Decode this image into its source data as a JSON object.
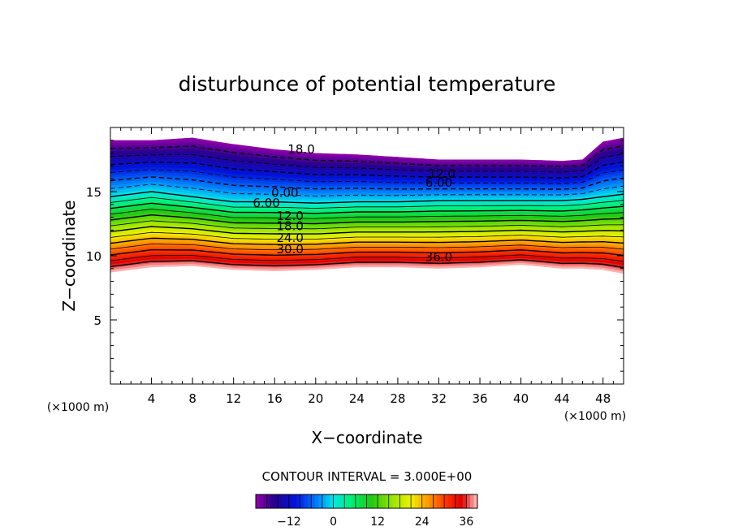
{
  "chart_data": {
    "type": "heatmap",
    "title": "disturbunce of potential temperature",
    "xlabel": "X−coordinate",
    "ylabel": "Z−coordinate",
    "x_unit": "(×1000 m)",
    "y_unit": "(×1000 m)",
    "xlim": [
      0,
      50
    ],
    "ylim": [
      0,
      20
    ],
    "x_ticks": [
      4,
      8,
      12,
      16,
      20,
      24,
      28,
      32,
      36,
      40,
      44,
      48
    ],
    "y_ticks": [
      5,
      10,
      15
    ],
    "contour_interval_text": "CONTOUR INTERVAL = 3.000E+00",
    "colorbar": {
      "ticks": [
        -12,
        0,
        12,
        24,
        36
      ],
      "tick_labels": [
        "−12",
        "0",
        "12",
        "24",
        "36"
      ],
      "range": [
        -21,
        39
      ]
    },
    "field": {
      "x": [
        0,
        4,
        8,
        12,
        16,
        20,
        24,
        28,
        32,
        36,
        40,
        44,
        46,
        48,
        50
      ],
      "top": [
        19.0,
        19.0,
        19.2,
        18.7,
        18.3,
        18.0,
        17.9,
        17.7,
        17.5,
        17.5,
        17.5,
        17.4,
        17.5,
        18.9,
        19.2
      ],
      "bottom": [
        8.7,
        9.1,
        9.2,
        8.9,
        8.8,
        8.9,
        9.1,
        9.1,
        9.0,
        9.1,
        9.3,
        9.0,
        9.0,
        8.9,
        8.6
      ],
      "interface_z": [
        14.6,
        15.0,
        14.6,
        14.2,
        14.2,
        14.1,
        14.2,
        14.2,
        14.3,
        14.3,
        14.3,
        14.3,
        14.4,
        14.6,
        14.8
      ],
      "value_at_top": -21,
      "value_at_interface": 0,
      "value_at_bottom": 39
    },
    "contour_labels": [
      {
        "text": "18.0",
        "x": 18.6,
        "z": 18.3
      },
      {
        "text": "12.0",
        "x": 32.3,
        "z": 16.4
      },
      {
        "text": "6.00",
        "x": 32.0,
        "z": 15.7
      },
      {
        "text": "0.00",
        "x": 17.0,
        "z": 14.9
      },
      {
        "text": "6.00",
        "x": 15.2,
        "z": 14.1
      },
      {
        "text": "12.0",
        "x": 17.5,
        "z": 13.1
      },
      {
        "text": "18.0",
        "x": 17.5,
        "z": 12.3
      },
      {
        "text": "24.0",
        "x": 17.5,
        "z": 11.4
      },
      {
        "text": "30.0",
        "x": 17.5,
        "z": 10.5
      },
      {
        "text": "36.0",
        "x": 32.0,
        "z": 9.9
      }
    ]
  }
}
